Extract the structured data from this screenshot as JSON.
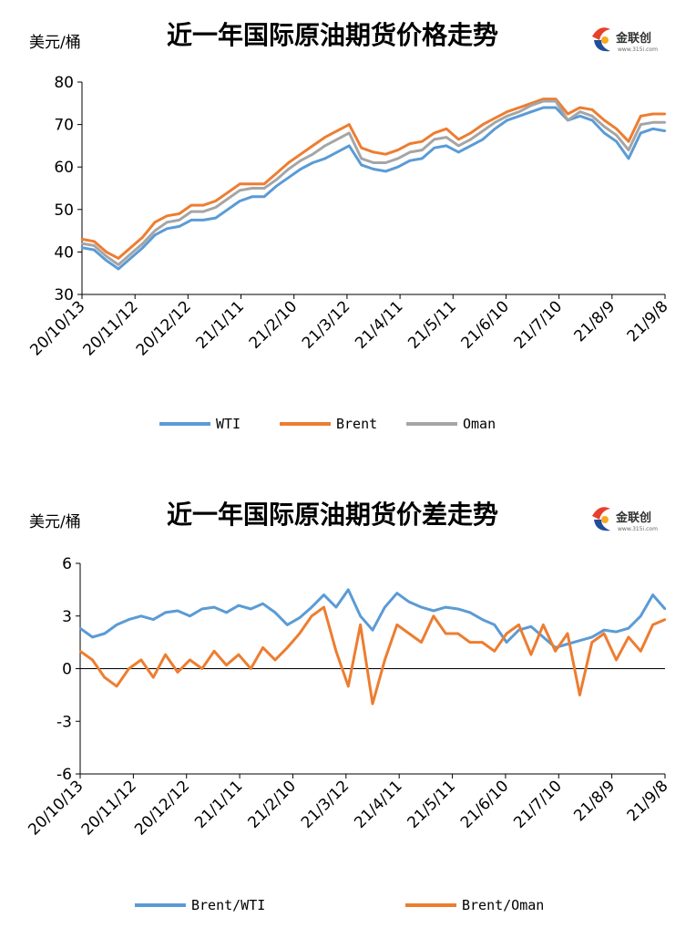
{
  "logo": {
    "text": "金联创",
    "sub": "www.315i.com"
  },
  "chart_data": [
    {
      "type": "line",
      "title": "近一年国际原油期货价格走势",
      "ylabel": "美元/桶",
      "ylim": [
        30,
        80
      ],
      "yticks": [
        "30",
        "40",
        "50",
        "60",
        "70",
        "80"
      ],
      "xticks": [
        "20/10/13",
        "20/11/12",
        "20/12/12",
        "21/1/11",
        "21/2/10",
        "21/3/12",
        "21/4/11",
        "21/5/11",
        "21/6/10",
        "21/7/10",
        "21/8/9",
        "21/9/8"
      ],
      "x": [
        "20/10/13",
        "20/10/19",
        "20/10/26",
        "20/11/2",
        "20/11/9",
        "20/11/16",
        "20/11/23",
        "20/11/30",
        "20/12/7",
        "20/12/14",
        "20/12/21",
        "20/12/28",
        "21/1/4",
        "21/1/11",
        "21/1/18",
        "21/1/25",
        "21/2/1",
        "21/2/8",
        "21/2/15",
        "21/2/22",
        "21/3/1",
        "21/3/8",
        "21/3/15",
        "21/3/22",
        "21/3/29",
        "21/4/5",
        "21/4/12",
        "21/4/19",
        "21/4/26",
        "21/5/3",
        "21/5/10",
        "21/5/17",
        "21/5/24",
        "21/5/31",
        "21/6/7",
        "21/6/14",
        "21/6/21",
        "21/6/28",
        "21/7/5",
        "21/7/12",
        "21/7/19",
        "21/7/26",
        "21/8/2",
        "21/8/9",
        "21/8/16",
        "21/8/23",
        "21/8/30",
        "21/9/6",
        "21/9/8"
      ],
      "series": [
        {
          "name": "WTI",
          "color": "#5B9BD5",
          "values": [
            41,
            40.5,
            38,
            36,
            38.5,
            41,
            44,
            45.5,
            46,
            47.5,
            47.5,
            48,
            50,
            52,
            53,
            53,
            55.5,
            57.5,
            59.5,
            61,
            62,
            63.5,
            65,
            60.5,
            59.5,
            59,
            60,
            61.5,
            62,
            64.5,
            65,
            63.5,
            65,
            66.5,
            69,
            71,
            72,
            73,
            74,
            74,
            71,
            72,
            71,
            68,
            66,
            62,
            68,
            69,
            68.5
          ]
        },
        {
          "name": "Brent",
          "color": "#ED7D31",
          "values": [
            43,
            42.5,
            40,
            38.5,
            41,
            43.5,
            47,
            48.5,
            49,
            51,
            51,
            52,
            54,
            56,
            56,
            56,
            58.5,
            61,
            63,
            65,
            67,
            68.5,
            70,
            64.5,
            63.5,
            63,
            64,
            65.5,
            66,
            68,
            69,
            66.5,
            68,
            70,
            71.5,
            73,
            74,
            75,
            76,
            76,
            72.5,
            74,
            73.5,
            71,
            69,
            66,
            72,
            72.5,
            72.5
          ]
        },
        {
          "name": "Oman",
          "color": "#A5A5A5",
          "values": [
            42,
            41.5,
            39,
            37,
            39.5,
            42,
            45,
            47,
            47.5,
            49.5,
            49.5,
            50.5,
            52.5,
            54.5,
            55,
            55,
            57,
            59.5,
            61.5,
            63,
            65,
            66.5,
            68,
            62,
            61,
            61,
            62,
            63.5,
            64,
            66.5,
            67,
            65,
            66.5,
            68.5,
            70.5,
            72,
            73,
            74.5,
            75.5,
            75.5,
            71,
            73,
            72,
            69.5,
            67.5,
            64,
            70,
            70.5,
            70.5
          ]
        }
      ],
      "legend": "bottom"
    },
    {
      "type": "line",
      "title": "近一年国际原油期货价差走势",
      "ylabel": "美元/桶",
      "ylim": [
        -6,
        6
      ],
      "yticks": [
        "-6",
        "-3",
        "0",
        "3",
        "6"
      ],
      "xticks": [
        "20/10/13",
        "20/11/12",
        "20/12/12",
        "21/1/11",
        "21/2/10",
        "21/3/12",
        "21/4/11",
        "21/5/11",
        "21/6/10",
        "21/7/10",
        "21/8/9",
        "21/9/8"
      ],
      "x": [
        "20/10/13",
        "20/10/19",
        "20/10/26",
        "20/11/2",
        "20/11/9",
        "20/11/16",
        "20/11/23",
        "20/11/30",
        "20/12/7",
        "20/12/14",
        "20/12/21",
        "20/12/28",
        "21/1/4",
        "21/1/11",
        "21/1/18",
        "21/1/25",
        "21/2/1",
        "21/2/8",
        "21/2/15",
        "21/2/22",
        "21/3/1",
        "21/3/8",
        "21/3/15",
        "21/3/22",
        "21/3/29",
        "21/4/5",
        "21/4/12",
        "21/4/19",
        "21/4/26",
        "21/5/3",
        "21/5/10",
        "21/5/17",
        "21/5/24",
        "21/5/31",
        "21/6/7",
        "21/6/14",
        "21/6/21",
        "21/6/28",
        "21/7/5",
        "21/7/12",
        "21/7/19",
        "21/7/26",
        "21/8/2",
        "21/8/9",
        "21/8/16",
        "21/8/23",
        "21/8/30",
        "21/9/6",
        "21/9/8"
      ],
      "series": [
        {
          "name": "Brent/WTI",
          "color": "#5B9BD5",
          "values": [
            2.3,
            1.8,
            2,
            2.5,
            2.8,
            3,
            2.8,
            3.2,
            3.3,
            3,
            3.4,
            3.5,
            3.2,
            3.6,
            3.4,
            3.7,
            3.2,
            2.5,
            2.9,
            3.5,
            4.2,
            3.5,
            4.5,
            3,
            2.2,
            3.5,
            4.3,
            3.8,
            3.5,
            3.3,
            3.5,
            3.4,
            3.2,
            2.8,
            2.5,
            1.5,
            2.2,
            2.4,
            1.8,
            1.2,
            1.4,
            1.6,
            1.8,
            2.2,
            2.1,
            2.3,
            3.0,
            4.2,
            3.4
          ]
        },
        {
          "name": "Brent/Oman",
          "color": "#ED7D31",
          "values": [
            1,
            0.5,
            -0.5,
            -1,
            0,
            0.5,
            -0.5,
            0.8,
            -0.2,
            0.5,
            0,
            1,
            0.2,
            0.8,
            0,
            1.2,
            0.5,
            1.2,
            2,
            3,
            3.5,
            1,
            -1,
            2.5,
            -2,
            0.5,
            2.5,
            2,
            1.5,
            3,
            2,
            2,
            1.5,
            1.5,
            1,
            2,
            2.5,
            0.8,
            2.5,
            1,
            2,
            -1.5,
            1.5,
            2,
            0.5,
            1.8,
            1,
            2.5,
            2.8
          ]
        }
      ],
      "legend": "bottom"
    }
  ]
}
